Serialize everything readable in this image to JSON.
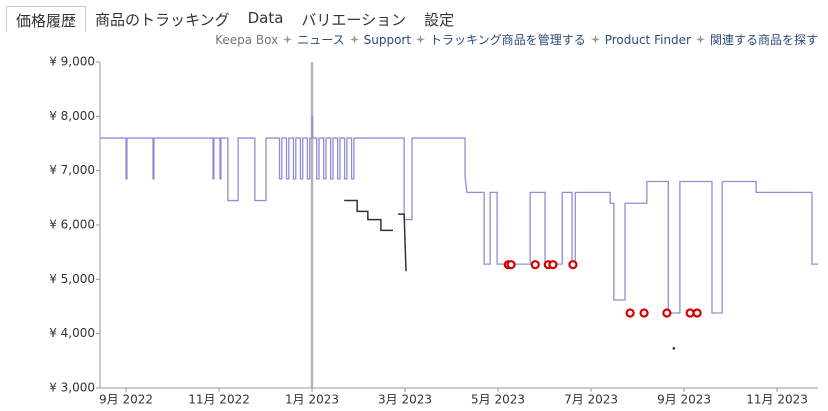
{
  "tabs": [
    "価格履歴",
    "商品のトラッキング",
    "Data",
    "バリエーション",
    "設定"
  ],
  "active_tab": 0,
  "links": [
    "Keepa Box",
    "ニュース",
    "Support",
    "トラッキング商品を管理する",
    "Product Finder",
    "関連する商品を探す"
  ],
  "chart_data": {
    "type": "line",
    "xlim": [
      -0.56,
      14.88
    ],
    "xticks": [
      {
        "value": 0,
        "label": "9月 2022"
      },
      {
        "value": 2,
        "label": "11月 2022"
      },
      {
        "value": 4,
        "label": "1月 2023"
      },
      {
        "value": 6,
        "label": "3月 2023"
      },
      {
        "value": 8,
        "label": "5月 2023"
      },
      {
        "value": 10,
        "label": "7月 2023"
      },
      {
        "value": 12,
        "label": "9月 2023"
      },
      {
        "value": 14,
        "label": "11月 2023"
      }
    ],
    "ylim": [
      3000,
      9000
    ],
    "yticks": [
      {
        "value": 3000,
        "label": "¥ 3,000"
      },
      {
        "value": 4000,
        "label": "¥ 4,000"
      },
      {
        "value": 5000,
        "label": "¥ 5,000"
      },
      {
        "value": 6000,
        "label": "¥ 6,000"
      },
      {
        "value": 7000,
        "label": "¥ 7,000"
      },
      {
        "value": 8000,
        "label": "¥ 8,000"
      },
      {
        "value": 9000,
        "label": "¥ 9,000"
      }
    ],
    "grid": false,
    "series": [
      {
        "style": "line",
        "color": "#8f8fd6",
        "x": [
          -0.56,
          0,
          0,
          0.02,
          0.02,
          0.58,
          0.58,
          0.6,
          0.6,
          1.87,
          1.87,
          1.89,
          1.89,
          2.02,
          2.02,
          2.04,
          2.04,
          2.19,
          2.19,
          2.41,
          2.41,
          2.77,
          2.77,
          3.01,
          3.01,
          3.3,
          3.3,
          3.35,
          3.35,
          3.45,
          3.45,
          3.5,
          3.5,
          3.6,
          3.6,
          3.65,
          3.65,
          3.75,
          3.75,
          3.8,
          3.8,
          3.9,
          3.9,
          3.95,
          3.95,
          4.0,
          4.0,
          4.01,
          4.01,
          4.1,
          4.1,
          4.15,
          4.15,
          4.25,
          4.25,
          4.3,
          4.3,
          4.4,
          4.4,
          4.45,
          4.45,
          4.55,
          4.55,
          4.6,
          4.6,
          4.7,
          4.7,
          4.75,
          4.75,
          4.85,
          4.85,
          4.9,
          4.9,
          5.98,
          5.98,
          6.15,
          6.15,
          7.29,
          7.29,
          7.33,
          7.7,
          7.7,
          7.83,
          7.83,
          7.98,
          7.98,
          8.69,
          8.69,
          9.01,
          9.01,
          9.38,
          9.38,
          9.59,
          9.59,
          9.66,
          9.66,
          10.41,
          10.41,
          10.49,
          10.49,
          10.73,
          10.73,
          11.2,
          11.2,
          11.66,
          11.66,
          11.91,
          11.91,
          12.6,
          12.6,
          12.82,
          12.82,
          13.55,
          13.55,
          14.75,
          14.75,
          14.88
        ],
        "values": [
          7600,
          7600,
          6850,
          6850,
          7600,
          7600,
          6850,
          6850,
          7600,
          7600,
          6850,
          6850,
          7600,
          7600,
          6850,
          6850,
          7600,
          7600,
          6450,
          6450,
          7600,
          7600,
          6450,
          6450,
          7600,
          7600,
          6850,
          6850,
          7600,
          7600,
          6850,
          6850,
          7600,
          7600,
          6850,
          6850,
          7600,
          7600,
          6850,
          6850,
          7600,
          7600,
          6850,
          6850,
          7600,
          7600,
          8000,
          8000,
          7600,
          7600,
          6850,
          6850,
          7600,
          7600,
          6850,
          6850,
          7600,
          7600,
          6850,
          6850,
          7600,
          7600,
          6850,
          6850,
          7600,
          7600,
          6850,
          6850,
          7600,
          7600,
          6850,
          6850,
          7600,
          7600,
          6100,
          6100,
          7600,
          7600,
          6900,
          6600,
          6600,
          5280,
          5280,
          6600,
          6600,
          5280,
          5280,
          6600,
          6600,
          5280,
          5280,
          6600,
          6600,
          5280,
          5280,
          6600,
          6600,
          6400,
          6400,
          4620,
          4620,
          6400,
          6400,
          6800,
          6800,
          4380,
          4380,
          6800,
          6800,
          4380,
          4380,
          6800,
          6800,
          6600,
          6600,
          5280,
          5280
        ]
      },
      {
        "style": "line",
        "color": "#333333",
        "x": [
          4.69,
          4.97,
          4.97,
          5.2,
          5.2,
          5.48,
          5.48,
          5.74,
          null,
          5.85,
          5.98,
          6.02
        ],
        "values": [
          6450,
          6450,
          6250,
          6250,
          6100,
          6100,
          5900,
          5900,
          null,
          6200,
          6200,
          5150
        ]
      },
      {
        "style": "circle",
        "color": "#d40000",
        "x": [
          8.22,
          8.28,
          8.8,
          9.08,
          9.18,
          9.61,
          10.84,
          11.14,
          11.63,
          12.13,
          12.28
        ],
        "values": [
          5270,
          5270,
          5270,
          5270,
          5270,
          5270,
          4380,
          4380,
          4380,
          4380,
          4380
        ]
      },
      {
        "style": "dot",
        "color": "#333333",
        "x": [
          11.78
        ],
        "values": [
          3730
        ]
      }
    ]
  }
}
